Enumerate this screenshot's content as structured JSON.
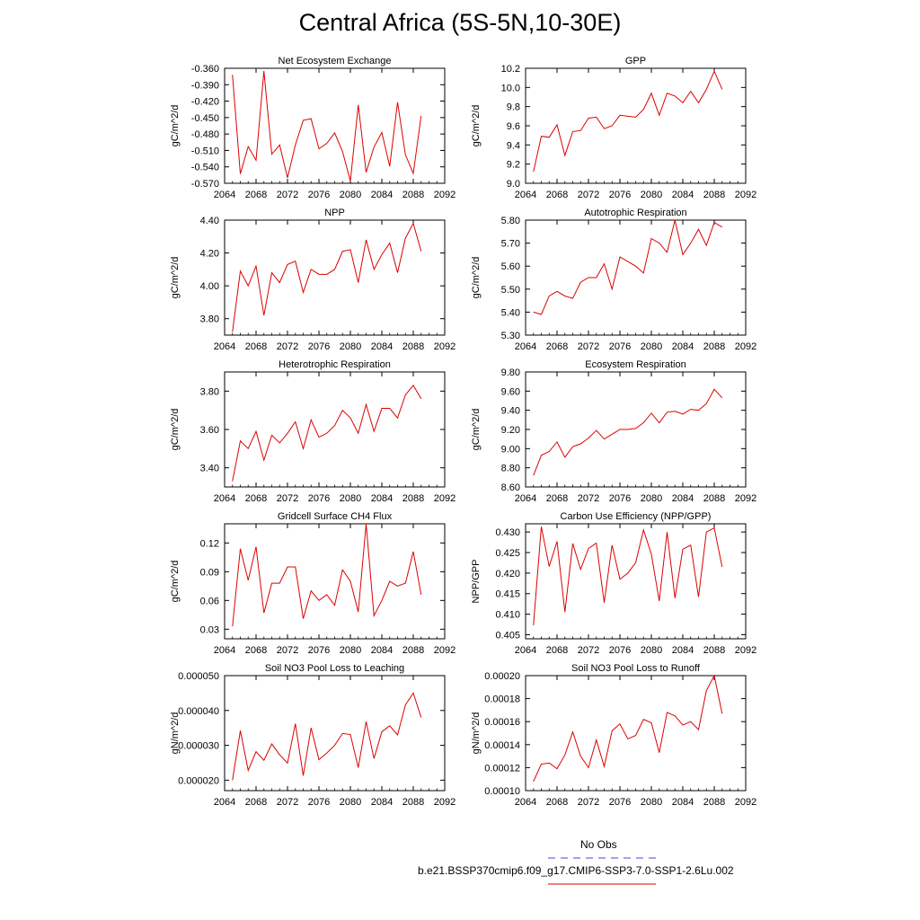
{
  "title": "Central Africa (5S-5N,10-30E)",
  "legend": {
    "obs_label": "No Obs",
    "obs_color": "#4444dd",
    "model_label": "b.e21.BSSP370cmip6.f09_g17.CMIP6-SSP3-7.0-SSP1-2.6Lu.002",
    "model_color": "#dd0000"
  },
  "chart_data": [
    {
      "type": "line",
      "title": "Net Ecosystem Exchange",
      "ylabel": "gC/m^2/d",
      "xlim": [
        2064,
        2092
      ],
      "xticks": [
        "2064",
        "2068",
        "2072",
        "2076",
        "2080",
        "2084",
        "2088",
        "2092"
      ],
      "ylim": [
        -0.57,
        -0.36
      ],
      "yticks": [
        "-0.360",
        "-0.390",
        "-0.420",
        "-0.450",
        "-0.480",
        "-0.510",
        "-0.540",
        "-0.570"
      ],
      "x": [
        2065,
        2066,
        2067,
        2068,
        2069,
        2070,
        2071,
        2072,
        2073,
        2074,
        2075,
        2076,
        2077,
        2078,
        2079,
        2080,
        2081,
        2082,
        2083,
        2084,
        2085,
        2086,
        2087,
        2088,
        2089
      ],
      "series": [
        {
          "name": "b.e21.BSSP370cmip6.f09_g17.CMIP6-SSP3-7.0-SSP1-2.6Lu.002",
          "values": [
            -0.372,
            -0.553,
            -0.503,
            -0.528,
            -0.365,
            -0.517,
            -0.5,
            -0.56,
            -0.5,
            -0.455,
            -0.452,
            -0.507,
            -0.497,
            -0.478,
            -0.512,
            -0.566,
            -0.427,
            -0.55,
            -0.504,
            -0.477,
            -0.539,
            -0.422,
            -0.518,
            -0.552,
            -0.447
          ]
        }
      ]
    },
    {
      "type": "line",
      "title": "GPP",
      "ylabel": "gC/m^2/d",
      "xlim": [
        2064,
        2092
      ],
      "xticks": [
        "2064",
        "2068",
        "2072",
        "2076",
        "2080",
        "2084",
        "2088",
        "2092"
      ],
      "ylim": [
        9.0,
        10.2
      ],
      "yticks": [
        "10.2",
        "10.0",
        "9.8",
        "9.6",
        "9.4",
        "9.2",
        "9.0"
      ],
      "x": [
        2065,
        2066,
        2067,
        2068,
        2069,
        2070,
        2071,
        2072,
        2073,
        2074,
        2075,
        2076,
        2077,
        2078,
        2079,
        2080,
        2081,
        2082,
        2083,
        2084,
        2085,
        2086,
        2087,
        2088,
        2089
      ],
      "series": [
        {
          "name": "b.e21.BSSP370cmip6.f09_g17.CMIP6-SSP3-7.0-SSP1-2.6Lu.002",
          "values": [
            9.12,
            9.49,
            9.48,
            9.61,
            9.29,
            9.54,
            9.55,
            9.68,
            9.69,
            9.57,
            9.6,
            9.71,
            9.7,
            9.69,
            9.77,
            9.94,
            9.71,
            9.94,
            9.91,
            9.84,
            9.96,
            9.84,
            9.98,
            10.17,
            9.98
          ]
        }
      ]
    },
    {
      "type": "line",
      "title": "NPP",
      "ylabel": "gC/m^2/d",
      "xlim": [
        2064,
        2092
      ],
      "xticks": [
        "2064",
        "2068",
        "2072",
        "2076",
        "2080",
        "2084",
        "2088",
        "2092"
      ],
      "ylim": [
        3.7,
        4.4
      ],
      "yticks": [
        "4.40",
        "4.20",
        "4.00",
        "3.80"
      ],
      "x": [
        2065,
        2066,
        2067,
        2068,
        2069,
        2070,
        2071,
        2072,
        2073,
        2074,
        2075,
        2076,
        2077,
        2078,
        2079,
        2080,
        2081,
        2082,
        2083,
        2084,
        2085,
        2086,
        2087,
        2088,
        2089
      ],
      "series": [
        {
          "name": "b.e21.BSSP370cmip6.f09_g17.CMIP6-SSP3-7.0-SSP1-2.6Lu.002",
          "values": [
            3.72,
            4.09,
            4.0,
            4.12,
            3.82,
            4.08,
            4.02,
            4.13,
            4.15,
            3.96,
            4.1,
            4.07,
            4.07,
            4.1,
            4.21,
            4.22,
            4.02,
            4.28,
            4.1,
            4.19,
            4.26,
            4.08,
            4.29,
            4.38,
            4.21
          ]
        }
      ]
    },
    {
      "type": "line",
      "title": "Autotrophic Respiration",
      "ylabel": "gC/m^2/d",
      "xlim": [
        2064,
        2092
      ],
      "xticks": [
        "2064",
        "2068",
        "2072",
        "2076",
        "2080",
        "2084",
        "2088",
        "2092"
      ],
      "ylim": [
        5.3,
        5.8
      ],
      "yticks": [
        "5.80",
        "5.70",
        "5.60",
        "5.50",
        "5.40",
        "5.30"
      ],
      "x": [
        2065,
        2066,
        2067,
        2068,
        2069,
        2070,
        2071,
        2072,
        2073,
        2074,
        2075,
        2076,
        2077,
        2078,
        2079,
        2080,
        2081,
        2082,
        2083,
        2084,
        2085,
        2086,
        2087,
        2088,
        2089
      ],
      "series": [
        {
          "name": "b.e21.BSSP370cmip6.f09_g17.CMIP6-SSP3-7.0-SSP1-2.6Lu.002",
          "values": [
            5.4,
            5.39,
            5.47,
            5.49,
            5.47,
            5.46,
            5.53,
            5.55,
            5.55,
            5.61,
            5.5,
            5.64,
            5.62,
            5.6,
            5.57,
            5.72,
            5.7,
            5.66,
            5.8,
            5.65,
            5.7,
            5.76,
            5.69,
            5.79,
            5.77
          ]
        }
      ]
    },
    {
      "type": "line",
      "title": "Heterotrophic Respiration",
      "ylabel": "gC/m^2/d",
      "xlim": [
        2064,
        2092
      ],
      "xticks": [
        "2064",
        "2068",
        "2072",
        "2076",
        "2080",
        "2084",
        "2088",
        "2092"
      ],
      "ylim": [
        3.3,
        3.9
      ],
      "yticks": [
        "3.80",
        "3.60",
        "3.40"
      ],
      "x": [
        2065,
        2066,
        2067,
        2068,
        2069,
        2070,
        2071,
        2072,
        2073,
        2074,
        2075,
        2076,
        2077,
        2078,
        2079,
        2080,
        2081,
        2082,
        2083,
        2084,
        2085,
        2086,
        2087,
        2088,
        2089
      ],
      "series": [
        {
          "name": "b.e21.BSSP370cmip6.f09_g17.CMIP6-SSP3-7.0-SSP1-2.6Lu.002",
          "values": [
            3.33,
            3.54,
            3.5,
            3.59,
            3.44,
            3.57,
            3.53,
            3.58,
            3.64,
            3.5,
            3.65,
            3.56,
            3.58,
            3.62,
            3.7,
            3.66,
            3.58,
            3.73,
            3.59,
            3.71,
            3.71,
            3.66,
            3.78,
            3.83,
            3.76
          ]
        }
      ]
    },
    {
      "type": "line",
      "title": "Ecosystem Respiration",
      "ylabel": "gC/m^2/d",
      "xlim": [
        2064,
        2092
      ],
      "xticks": [
        "2064",
        "2068",
        "2072",
        "2076",
        "2080",
        "2084",
        "2088",
        "2092"
      ],
      "ylim": [
        8.6,
        9.8
      ],
      "yticks": [
        "9.80",
        "9.60",
        "9.40",
        "9.20",
        "9.00",
        "8.80",
        "8.60"
      ],
      "x": [
        2065,
        2066,
        2067,
        2068,
        2069,
        2070,
        2071,
        2072,
        2073,
        2074,
        2075,
        2076,
        2077,
        2078,
        2079,
        2080,
        2081,
        2082,
        2083,
        2084,
        2085,
        2086,
        2087,
        2088,
        2089
      ],
      "series": [
        {
          "name": "b.e21.BSSP370cmip6.f09_g17.CMIP6-SSP3-7.0-SSP1-2.6Lu.002",
          "values": [
            8.72,
            8.93,
            8.97,
            9.07,
            8.91,
            9.02,
            9.05,
            9.11,
            9.19,
            9.1,
            9.15,
            9.2,
            9.2,
            9.21,
            9.27,
            9.37,
            9.27,
            9.38,
            9.39,
            9.36,
            9.41,
            9.4,
            9.47,
            9.62,
            9.53
          ]
        }
      ]
    },
    {
      "type": "line",
      "title": "Gridcell Surface CH4 Flux",
      "ylabel": "gC/m^2/d",
      "xlim": [
        2064,
        2092
      ],
      "xticks": [
        "2064",
        "2068",
        "2072",
        "2076",
        "2080",
        "2084",
        "2088",
        "2092"
      ],
      "ylim": [
        0.02,
        0.14
      ],
      "yticks": [
        "0.12",
        "0.09",
        "0.06",
        "0.03"
      ],
      "x": [
        2065,
        2066,
        2067,
        2068,
        2069,
        2070,
        2071,
        2072,
        2073,
        2074,
        2075,
        2076,
        2077,
        2078,
        2079,
        2080,
        2081,
        2082,
        2083,
        2084,
        2085,
        2086,
        2087,
        2088,
        2089
      ],
      "series": [
        {
          "name": "b.e21.BSSP370cmip6.f09_g17.CMIP6-SSP3-7.0-SSP1-2.6Lu.002",
          "values": [
            0.033,
            0.114,
            0.081,
            0.116,
            0.047,
            0.078,
            0.078,
            0.095,
            0.095,
            0.041,
            0.07,
            0.06,
            0.066,
            0.055,
            0.092,
            0.08,
            0.048,
            0.14,
            0.044,
            0.06,
            0.08,
            0.075,
            0.078,
            0.111,
            0.066
          ]
        }
      ]
    },
    {
      "type": "line",
      "title": "Carbon Use Efficiency (NPP/GPP)",
      "ylabel": "NPP/GPP",
      "xlim": [
        2064,
        2092
      ],
      "xticks": [
        "2064",
        "2068",
        "2072",
        "2076",
        "2080",
        "2084",
        "2088",
        "2092"
      ],
      "ylim": [
        0.404,
        0.432
      ],
      "yticks": [
        "0.430",
        "0.425",
        "0.420",
        "0.415",
        "0.410",
        "0.405"
      ],
      "x": [
        2065,
        2066,
        2067,
        2068,
        2069,
        2070,
        2071,
        2072,
        2073,
        2074,
        2075,
        2076,
        2077,
        2078,
        2079,
        2080,
        2081,
        2082,
        2083,
        2084,
        2085,
        2086,
        2087,
        2088,
        2089
      ],
      "series": [
        {
          "name": "b.e21.BSSP370cmip6.f09_g17.CMIP6-SSP3-7.0-SSP1-2.6Lu.002",
          "values": [
            0.4073,
            0.4313,
            0.4216,
            0.4277,
            0.4105,
            0.4272,
            0.4209,
            0.426,
            0.4273,
            0.4128,
            0.4268,
            0.4185,
            0.42,
            0.4225,
            0.4305,
            0.4246,
            0.4132,
            0.43,
            0.4139,
            0.4258,
            0.4268,
            0.4142,
            0.43,
            0.431,
            0.4215
          ]
        }
      ]
    },
    {
      "type": "line",
      "title": "Soil NO3 Pool Loss to Leaching",
      "ylabel": "gN/m^2/d",
      "xlim": [
        2064,
        2092
      ],
      "xticks": [
        "2064",
        "2068",
        "2072",
        "2076",
        "2080",
        "2084",
        "2088",
        "2092"
      ],
      "ylim": [
        1.7e-05,
        5e-05
      ],
      "yticks": [
        "0.000050",
        "0.000040",
        "0.000030",
        "0.000020"
      ],
      "x": [
        2065,
        2066,
        2067,
        2068,
        2069,
        2070,
        2071,
        2072,
        2073,
        2074,
        2075,
        2076,
        2077,
        2078,
        2079,
        2080,
        2081,
        2082,
        2083,
        2084,
        2085,
        2086,
        2087,
        2088,
        2089
      ],
      "series": [
        {
          "name": "b.e21.BSSP370cmip6.f09_g17.CMIP6-SSP3-7.0-SSP1-2.6Lu.002",
          "values": [
            2e-05,
            3.42e-05,
            2.28e-05,
            2.82e-05,
            2.57e-05,
            3.04e-05,
            2.73e-05,
            2.49e-05,
            3.62e-05,
            2.13e-05,
            3.5e-05,
            2.59e-05,
            2.78e-05,
            3e-05,
            3.34e-05,
            3.31e-05,
            2.36e-05,
            3.68e-05,
            2.62e-05,
            3.39e-05,
            3.56e-05,
            3.3e-05,
            4.16e-05,
            4.5e-05,
            3.8e-05
          ]
        }
      ]
    },
    {
      "type": "line",
      "title": "Soil NO3 Pool Loss to Runoff",
      "ylabel": "gN/m^2/d",
      "xlim": [
        2064,
        2092
      ],
      "xticks": [
        "2064",
        "2068",
        "2072",
        "2076",
        "2080",
        "2084",
        "2088",
        "2092"
      ],
      "ylim": [
        0.0001,
        0.0002
      ],
      "yticks": [
        "0.00020",
        "0.00018",
        "0.00016",
        "0.00014",
        "0.00012",
        "0.00010"
      ],
      "x": [
        2065,
        2066,
        2067,
        2068,
        2069,
        2070,
        2071,
        2072,
        2073,
        2074,
        2075,
        2076,
        2077,
        2078,
        2079,
        2080,
        2081,
        2082,
        2083,
        2084,
        2085,
        2086,
        2087,
        2088,
        2089
      ],
      "series": [
        {
          "name": "b.e21.BSSP370cmip6.f09_g17.CMIP6-SSP3-7.0-SSP1-2.6Lu.002",
          "values": [
            0.000108,
            0.000123,
            0.000124,
            0.000119,
            0.000131,
            0.000151,
            0.00013,
            0.00012,
            0.000144,
            0.000121,
            0.000152,
            0.000158,
            0.000145,
            0.000148,
            0.000162,
            0.000159,
            0.000133,
            0.000168,
            0.000165,
            0.000157,
            0.00016,
            0.000153,
            0.000187,
            0.0002,
            0.000167
          ]
        }
      ]
    }
  ]
}
